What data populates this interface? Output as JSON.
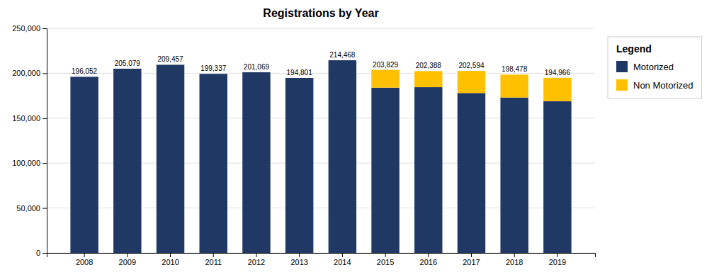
{
  "chart_data": {
    "type": "bar",
    "stacked": true,
    "title": "Registrations by Year",
    "categories": [
      "2008",
      "2009",
      "2010",
      "2011",
      "2012",
      "2013",
      "2014",
      "2015",
      "2016",
      "2017",
      "2018",
      "2019"
    ],
    "series": [
      {
        "name": "Motorized",
        "color": "#1F3864",
        "values": [
          196052,
          205079,
          209457,
          199337,
          201069,
          194801,
          214468,
          184000,
          184500,
          178000,
          173000,
          169000
        ]
      },
      {
        "name": "Non Motorized",
        "color": "#FFC000",
        "values": [
          0,
          0,
          0,
          0,
          0,
          0,
          0,
          19829,
          17888,
          24594,
          25478,
          25966
        ]
      }
    ],
    "totals": [
      196052,
      205079,
      209457,
      199337,
      201069,
      194801,
      214468,
      203829,
      202388,
      202594,
      198478,
      194966
    ],
    "total_labels": [
      "196,052",
      "205,079",
      "209,457",
      "199,337",
      "201,069",
      "194,801",
      "214,468",
      "203,829",
      "202,388",
      "202,594",
      "198,478",
      "194,966"
    ],
    "ylim": [
      0,
      250000
    ],
    "yticks": [
      0,
      {
        "value": 50000,
        "label": "50,000"
      },
      {
        "value": 100000,
        "label": "100,000"
      },
      {
        "value": 150000,
        "label": "150,000"
      },
      {
        "value": 200000,
        "label": "200,000"
      },
      {
        "value": 250000,
        "label": "250,000"
      }
    ],
    "grid": true,
    "legend": "right",
    "legend_title": "Legend"
  }
}
